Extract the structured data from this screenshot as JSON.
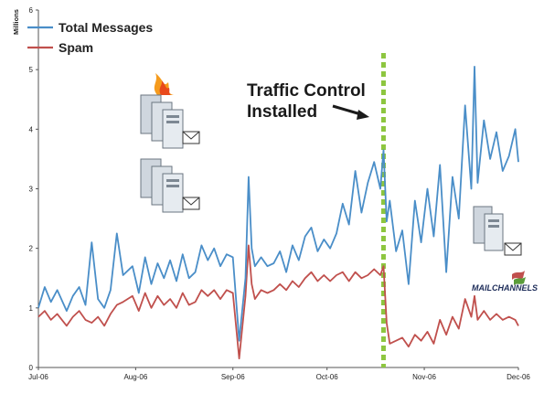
{
  "chart_data": {
    "type": "line",
    "ylabel": "Millions",
    "ylim": [
      0,
      6
    ],
    "y_ticks": [
      "0",
      "1",
      "2",
      "3",
      "4",
      "5",
      "6"
    ],
    "x_ticks": [
      "Jul-06",
      "Aug-06",
      "Sep-06",
      "Oct-06",
      "Nov-06",
      "Dec-06"
    ],
    "x_range": [
      "2006-07-01",
      "2006-12-01"
    ],
    "grid": false,
    "legend_position": "top-left",
    "series": [
      {
        "name": "Total Messages",
        "color": "#4a8ec8",
        "x": [
          "2006-07-01",
          "2006-07-03",
          "2006-07-05",
          "2006-07-07",
          "2006-07-10",
          "2006-07-12",
          "2006-07-14",
          "2006-07-16",
          "2006-07-18",
          "2006-07-20",
          "2006-07-22",
          "2006-07-24",
          "2006-07-26",
          "2006-07-28",
          "2006-07-31",
          "2006-08-02",
          "2006-08-04",
          "2006-08-06",
          "2006-08-08",
          "2006-08-10",
          "2006-08-12",
          "2006-08-14",
          "2006-08-16",
          "2006-08-18",
          "2006-08-20",
          "2006-08-22",
          "2006-08-24",
          "2006-08-26",
          "2006-08-28",
          "2006-08-30",
          "2006-09-01",
          "2006-09-03",
          "2006-09-05",
          "2006-09-06",
          "2006-09-07",
          "2006-09-08",
          "2006-09-10",
          "2006-09-12",
          "2006-09-14",
          "2006-09-16",
          "2006-09-18",
          "2006-09-20",
          "2006-09-22",
          "2006-09-24",
          "2006-09-26",
          "2006-09-28",
          "2006-09-30",
          "2006-10-02",
          "2006-10-04",
          "2006-10-06",
          "2006-10-08",
          "2006-10-10",
          "2006-10-12",
          "2006-10-14",
          "2006-10-16",
          "2006-10-18",
          "2006-10-19",
          "2006-10-20",
          "2006-10-21",
          "2006-10-23",
          "2006-10-25",
          "2006-10-27",
          "2006-10-29",
          "2006-10-31",
          "2006-11-02",
          "2006-11-04",
          "2006-11-06",
          "2006-11-08",
          "2006-11-10",
          "2006-11-12",
          "2006-11-14",
          "2006-11-16",
          "2006-11-17",
          "2006-11-18",
          "2006-11-20",
          "2006-11-22",
          "2006-11-24",
          "2006-11-26",
          "2006-11-28",
          "2006-11-30",
          "2006-12-01"
        ],
        "values": [
          1.0,
          1.35,
          1.1,
          1.3,
          0.95,
          1.2,
          1.35,
          1.05,
          2.1,
          1.15,
          1.0,
          1.3,
          2.25,
          1.55,
          1.7,
          1.25,
          1.85,
          1.4,
          1.75,
          1.5,
          1.8,
          1.45,
          1.9,
          1.5,
          1.6,
          2.05,
          1.8,
          2.0,
          1.7,
          1.9,
          1.85,
          0.45,
          1.5,
          3.2,
          2.0,
          1.7,
          1.85,
          1.7,
          1.75,
          1.95,
          1.6,
          2.05,
          1.8,
          2.2,
          2.35,
          1.95,
          2.15,
          2.0,
          2.25,
          2.75,
          2.4,
          3.3,
          2.6,
          3.1,
          3.45,
          3.0,
          3.65,
          2.45,
          2.8,
          1.95,
          2.3,
          1.4,
          2.8,
          2.1,
          3.0,
          2.2,
          3.4,
          1.6,
          3.2,
          2.5,
          4.4,
          3.0,
          5.05,
          3.1,
          4.15,
          3.5,
          3.95,
          3.3,
          3.55,
          4.0,
          3.45
        ]
      },
      {
        "name": "Spam",
        "color": "#c0504d",
        "x": [
          "2006-07-01",
          "2006-07-03",
          "2006-07-05",
          "2006-07-07",
          "2006-07-10",
          "2006-07-12",
          "2006-07-14",
          "2006-07-16",
          "2006-07-18",
          "2006-07-20",
          "2006-07-22",
          "2006-07-24",
          "2006-07-26",
          "2006-07-28",
          "2006-07-31",
          "2006-08-02",
          "2006-08-04",
          "2006-08-06",
          "2006-08-08",
          "2006-08-10",
          "2006-08-12",
          "2006-08-14",
          "2006-08-16",
          "2006-08-18",
          "2006-08-20",
          "2006-08-22",
          "2006-08-24",
          "2006-08-26",
          "2006-08-28",
          "2006-08-30",
          "2006-09-01",
          "2006-09-03",
          "2006-09-05",
          "2006-09-06",
          "2006-09-07",
          "2006-09-08",
          "2006-09-10",
          "2006-09-12",
          "2006-09-14",
          "2006-09-16",
          "2006-09-18",
          "2006-09-20",
          "2006-09-22",
          "2006-09-24",
          "2006-09-26",
          "2006-09-28",
          "2006-09-30",
          "2006-10-02",
          "2006-10-04",
          "2006-10-06",
          "2006-10-08",
          "2006-10-10",
          "2006-10-12",
          "2006-10-14",
          "2006-10-16",
          "2006-10-18",
          "2006-10-19",
          "2006-10-20",
          "2006-10-21",
          "2006-10-23",
          "2006-10-25",
          "2006-10-27",
          "2006-10-29",
          "2006-10-31",
          "2006-11-02",
          "2006-11-04",
          "2006-11-06",
          "2006-11-08",
          "2006-11-10",
          "2006-11-12",
          "2006-11-14",
          "2006-11-16",
          "2006-11-17",
          "2006-11-18",
          "2006-11-20",
          "2006-11-22",
          "2006-11-24",
          "2006-11-26",
          "2006-11-28",
          "2006-11-30",
          "2006-12-01"
        ],
        "values": [
          0.85,
          0.95,
          0.8,
          0.9,
          0.7,
          0.85,
          0.95,
          0.8,
          0.75,
          0.85,
          0.7,
          0.9,
          1.05,
          1.1,
          1.2,
          0.95,
          1.25,
          1.0,
          1.2,
          1.05,
          1.15,
          1.0,
          1.25,
          1.05,
          1.1,
          1.3,
          1.2,
          1.3,
          1.15,
          1.3,
          1.25,
          0.15,
          1.2,
          2.05,
          1.4,
          1.15,
          1.3,
          1.25,
          1.3,
          1.4,
          1.3,
          1.45,
          1.35,
          1.5,
          1.6,
          1.45,
          1.55,
          1.45,
          1.55,
          1.6,
          1.45,
          1.6,
          1.5,
          1.55,
          1.65,
          1.55,
          1.7,
          0.75,
          0.4,
          0.45,
          0.5,
          0.35,
          0.55,
          0.45,
          0.6,
          0.4,
          0.8,
          0.55,
          0.85,
          0.65,
          1.15,
          0.85,
          1.2,
          0.8,
          0.95,
          0.8,
          0.9,
          0.8,
          0.85,
          0.8,
          0.7
        ]
      }
    ],
    "annotation": {
      "line1": "Traffic Control",
      "line2": "Installed",
      "date": "2006-10-19",
      "marker_color": "#8dc63f"
    }
  },
  "branding": {
    "logo_text": "MAILCHANNELS"
  }
}
